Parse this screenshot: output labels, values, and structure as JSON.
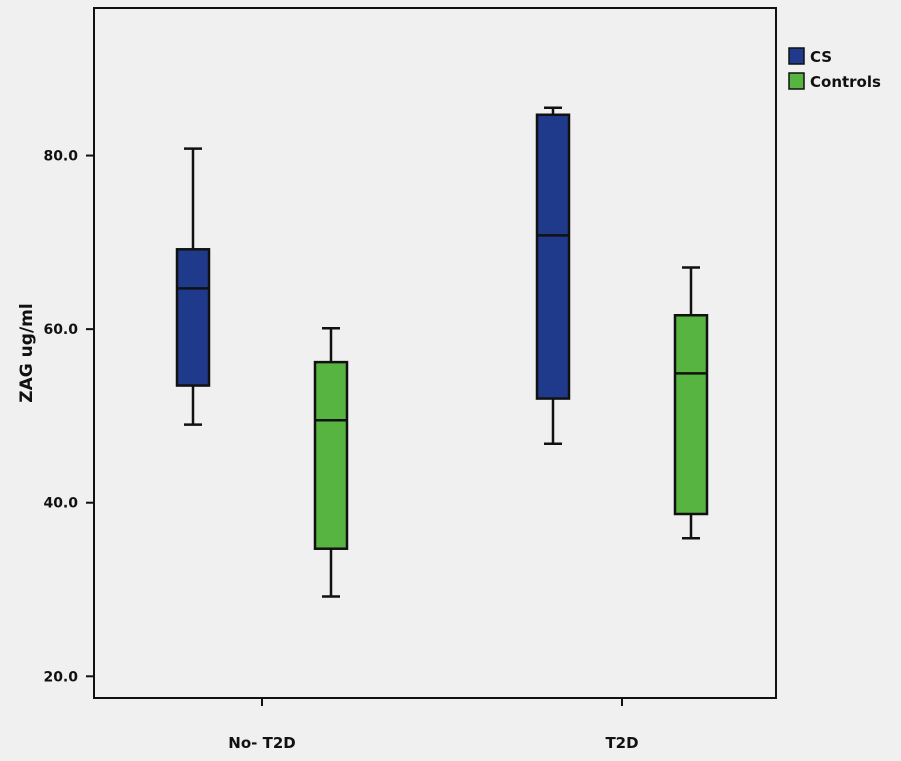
{
  "chart_data": {
    "type": "boxplot",
    "ylabel": "ZAG ug/ml",
    "xlabel": "",
    "ylim": [
      17.5,
      97
    ],
    "yticks": [
      {
        "value": 20,
        "label": "20.0"
      },
      {
        "value": 40,
        "label": "40.0"
      },
      {
        "value": 60,
        "label": "60.0"
      },
      {
        "value": 80,
        "label": "80.0"
      }
    ],
    "categories": [
      "No- T2D",
      "T2D"
    ],
    "legend_position": "top-right",
    "grid": false,
    "series": [
      {
        "name": "CS",
        "color": "#1f3a8a",
        "boxes": [
          {
            "min": 49,
            "q1": 53.5,
            "median": 64.7,
            "q3": 69.2,
            "max": 80.8
          },
          {
            "min": 46.8,
            "q1": 52,
            "median": 70.8,
            "q3": 84.7,
            "max": 85.5
          }
        ]
      },
      {
        "name": "Controls",
        "color": "#58b441",
        "boxes": [
          {
            "min": 29.2,
            "q1": 34.7,
            "median": 49.5,
            "q3": 56.2,
            "max": 60.1
          },
          {
            "min": 35.9,
            "q1": 38.7,
            "median": 54.9,
            "q3": 61.6,
            "max": 67.1
          }
        ]
      }
    ]
  }
}
